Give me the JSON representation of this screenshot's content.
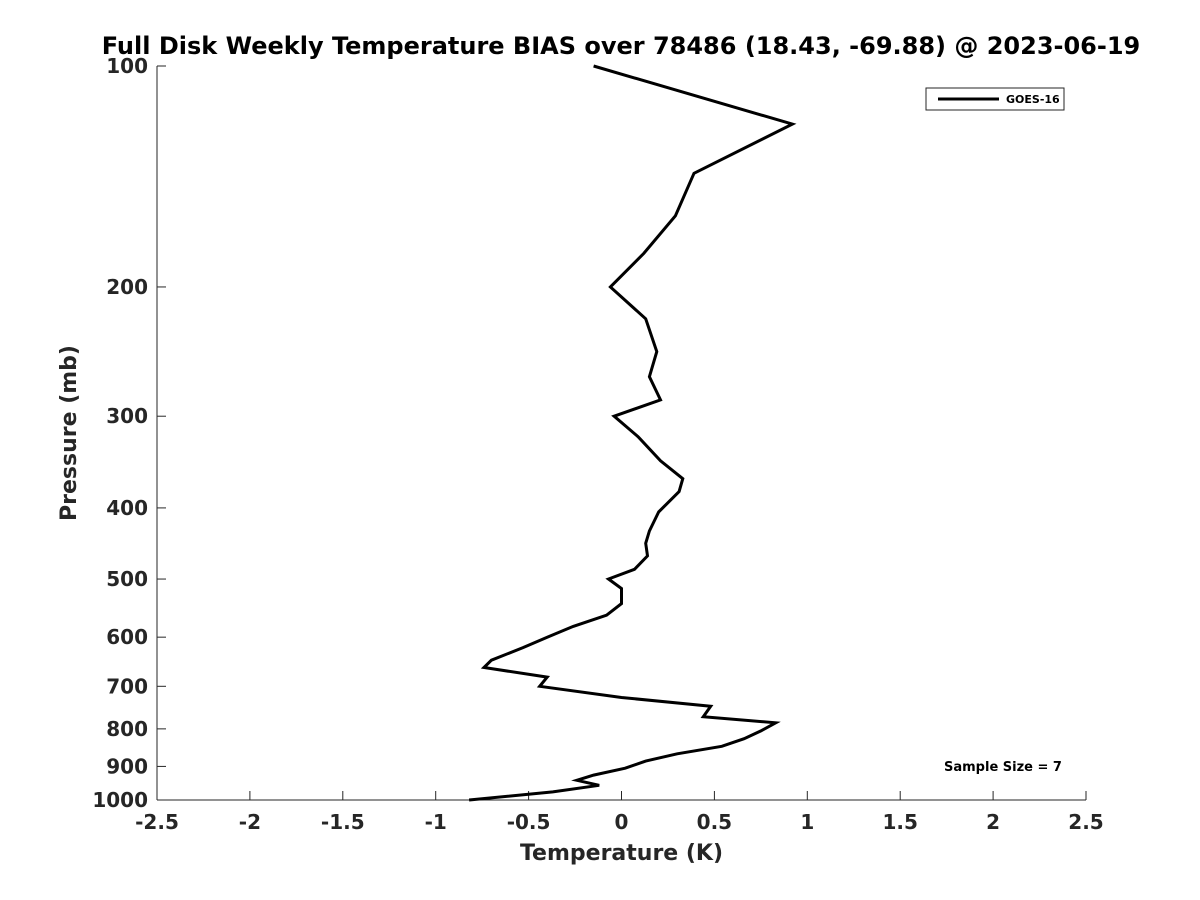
{
  "chart_data": {
    "type": "line",
    "title": "Full Disk Weekly Temperature BIAS over 78486 (18.43, -69.88) @ 2023-06-19",
    "xlabel": "Temperature (K)",
    "ylabel": "Pressure (mb)",
    "xlim": [
      -2.5,
      2.5
    ],
    "ylim": [
      100,
      1000
    ],
    "y_scale": "log",
    "y_reversed": true,
    "grid": false,
    "legend_position": "top-right",
    "x_ticks": [
      -2.5,
      -2,
      -1.5,
      -1,
      -0.5,
      0,
      0.5,
      1,
      1.5,
      2,
      2.5
    ],
    "x_tick_labels": [
      "-2.5",
      "-2",
      "-1.5",
      "-1",
      "-0.5",
      "0",
      "0.5",
      "1",
      "1.5",
      "2",
      "2.5"
    ],
    "y_ticks": [
      100,
      200,
      300,
      400,
      500,
      600,
      700,
      800,
      900,
      1000
    ],
    "y_tick_labels": [
      "100",
      "200",
      "300",
      "400",
      "500",
      "600",
      "700",
      "800",
      "900",
      "1000"
    ],
    "series": [
      {
        "name": "GOES-16",
        "color": "#000000",
        "points": [
          {
            "x": -0.15,
            "y": 100
          },
          {
            "x": 0.92,
            "y": 120
          },
          {
            "x": 0.39,
            "y": 140
          },
          {
            "x": 0.29,
            "y": 160
          },
          {
            "x": 0.12,
            "y": 180
          },
          {
            "x": -0.06,
            "y": 200
          },
          {
            "x": 0.13,
            "y": 221
          },
          {
            "x": 0.19,
            "y": 245
          },
          {
            "x": 0.15,
            "y": 265
          },
          {
            "x": 0.21,
            "y": 285
          },
          {
            "x": -0.04,
            "y": 300
          },
          {
            "x": 0.09,
            "y": 320
          },
          {
            "x": 0.21,
            "y": 345
          },
          {
            "x": 0.33,
            "y": 365
          },
          {
            "x": 0.31,
            "y": 380
          },
          {
            "x": 0.2,
            "y": 405
          },
          {
            "x": 0.15,
            "y": 430
          },
          {
            "x": 0.13,
            "y": 447
          },
          {
            "x": 0.14,
            "y": 465
          },
          {
            "x": 0.07,
            "y": 485
          },
          {
            "x": -0.07,
            "y": 500
          },
          {
            "x": 0.0,
            "y": 515
          },
          {
            "x": 0.0,
            "y": 540
          },
          {
            "x": -0.08,
            "y": 560
          },
          {
            "x": -0.26,
            "y": 580
          },
          {
            "x": -0.4,
            "y": 600
          },
          {
            "x": -0.53,
            "y": 620
          },
          {
            "x": -0.7,
            "y": 645
          },
          {
            "x": -0.74,
            "y": 660
          },
          {
            "x": -0.4,
            "y": 680
          },
          {
            "x": -0.44,
            "y": 700
          },
          {
            "x": 0.0,
            "y": 725
          },
          {
            "x": 0.48,
            "y": 745
          },
          {
            "x": 0.44,
            "y": 770
          },
          {
            "x": 0.83,
            "y": 785
          },
          {
            "x": 0.75,
            "y": 805
          },
          {
            "x": 0.66,
            "y": 825
          },
          {
            "x": 0.54,
            "y": 845
          },
          {
            "x": 0.3,
            "y": 865
          },
          {
            "x": 0.13,
            "y": 885
          },
          {
            "x": 0.02,
            "y": 905
          },
          {
            "x": -0.15,
            "y": 925
          },
          {
            "x": -0.24,
            "y": 940
          },
          {
            "x": -0.12,
            "y": 955
          },
          {
            "x": -0.37,
            "y": 975
          },
          {
            "x": -0.82,
            "y": 1000
          }
        ]
      }
    ],
    "annotations": [
      {
        "text": "Sample Size = 7"
      }
    ]
  }
}
